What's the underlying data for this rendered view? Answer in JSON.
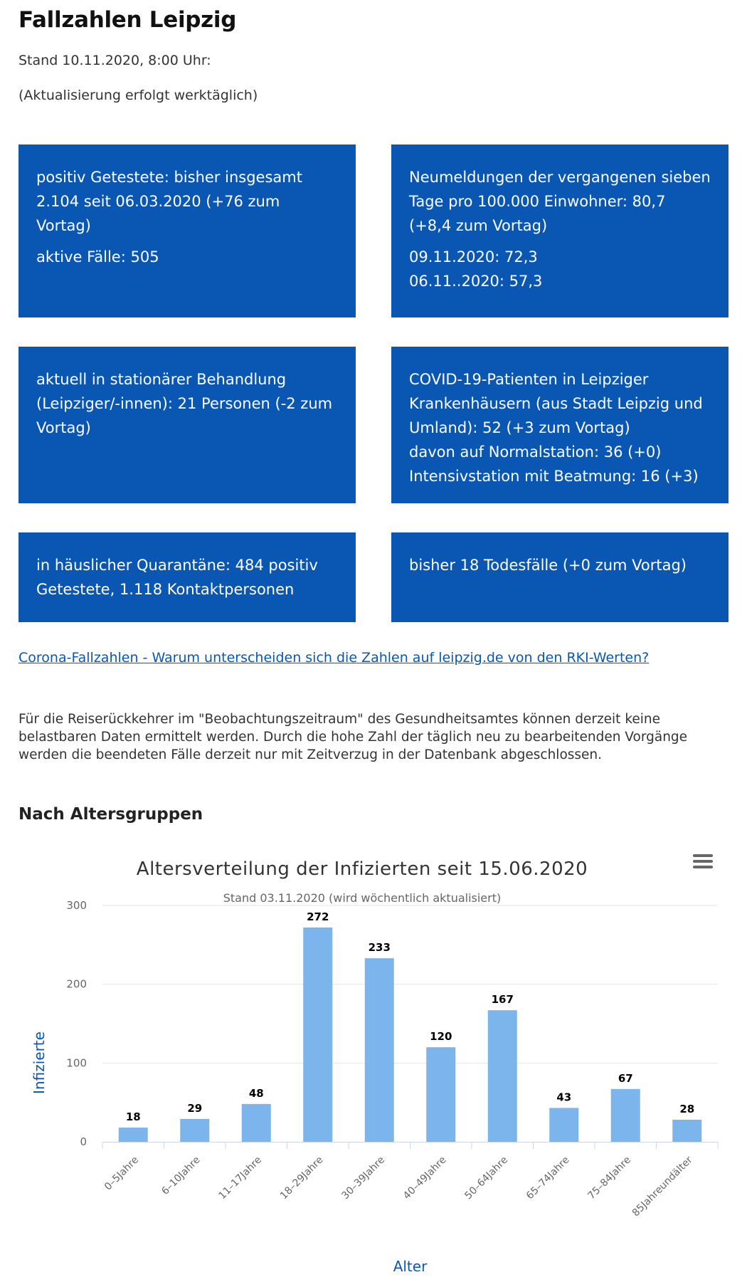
{
  "header": {
    "title": "Fallzahlen Leipzig",
    "stand": "Stand 10.11.2020, 8:00 Uhr:",
    "update_note": "(Aktualisierung erfolgt werktäglich)"
  },
  "boxes": {
    "positive": {
      "line1": "positiv Getestete: bisher insgesamt 2.104 seit 06.03.2020 (+76 zum Vortag)",
      "line2": "aktive Fälle: 505"
    },
    "incidence": {
      "line1": "Neumeldungen der vergangenen sieben Tage pro 100.000 Einwohner: 80,7 (+8,4 zum Vortag)",
      "line2": "09.11.2020: 72,3",
      "line3": "06.11..2020: 57,3"
    },
    "inpatient": {
      "line1": "aktuell in stationärer Behandlung (Leipziger/-innen): 21 Personen (-2 zum Vortag)"
    },
    "hospitals": {
      "line1": "COVID-19-Patienten in Leipziger Krankenhäusern (aus Stadt Leipzig und Umland): 52 (+3 zum Vortag)",
      "line2": "davon auf Normalstation: 36 (+0)",
      "line3": "Intensivstation mit Beatmung: 16 (+3)"
    },
    "quarantine": {
      "line1": "in häuslicher Quarantäne: 484 positiv Getestete, 1.118 Kontaktpersonen"
    },
    "deaths": {
      "line1": "bisher 18 Todesfälle (+0 zum Vortag)"
    }
  },
  "link": {
    "text": "Corona-Fallzahlen - Warum unterscheiden sich die Zahlen auf leipzig.de von den RKI-Werten?"
  },
  "note": {
    "text": "Für die Reiserückkehrer im \"Beobachtungszeitraum\" des Gesundheitsamtes können derzeit keine belastbaren Daten ermittelt werden. Durch die hohe Zahl der täglich neu zu bearbeitenden Vorgänge werden die beendeten Fälle derzeit nur mit Zeitverzug in der Datenbank abgeschlossen."
  },
  "section": {
    "heading": "Nach Altersgruppen"
  },
  "colors": {
    "box_bg": "#0a57b3",
    "bar": "#7cb5ec",
    "axis_title": "#0a57b3"
  },
  "chart_data": {
    "type": "bar",
    "title": "Altersverteilung der Infizierten seit 15.06.2020",
    "subtitle": "Stand 03.11.2020 (wird wöchentlich aktualisiert)",
    "xlabel": "Alter",
    "ylabel": "Infizierte",
    "categories": [
      "0–5Jahre",
      "6–10Jahre",
      "11–17Jahre",
      "18–29Jahre",
      "30–39Jahre",
      "40–49Jahre",
      "50–64Jahre",
      "65–74Jahre",
      "75–84Jahre",
      "85Jahreundälter"
    ],
    "values": [
      18,
      29,
      48,
      272,
      233,
      120,
      167,
      43,
      67,
      28
    ],
    "ylim": [
      0,
      300
    ],
    "yticks": [
      0,
      100,
      200,
      300
    ],
    "grid": true,
    "data_labels": true,
    "legend": "none"
  }
}
